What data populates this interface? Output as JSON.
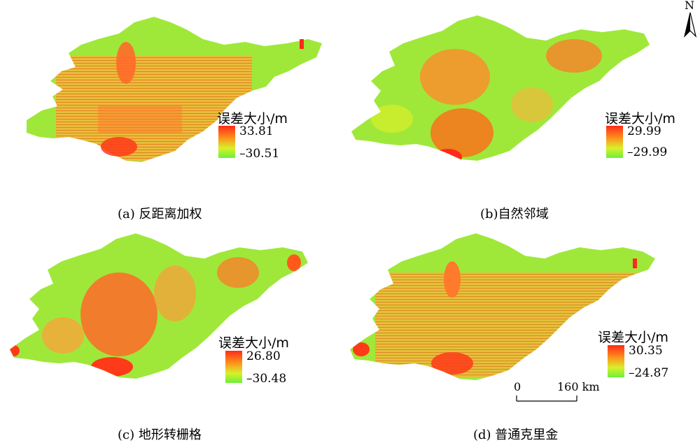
{
  "north_arrow": {
    "label": "N",
    "icon": "north-arrow-icon"
  },
  "panels": [
    {
      "caption": "(a) 反距离加权",
      "legend_title": "误差大小/m",
      "legend_max": "33.81",
      "legend_min": "–30.51"
    },
    {
      "caption": "(b)自然邻域",
      "legend_title": "误差大小/m",
      "legend_max": "29.99",
      "legend_min": "–29.99"
    },
    {
      "caption": "(c) 地形转栅格",
      "legend_title": "误差大小/m",
      "legend_max": "26.80",
      "legend_min": "–30.48"
    },
    {
      "caption": "(d) 普通克里金",
      "legend_title": "误差大小/m",
      "legend_max": "30.35",
      "legend_min": "–24.87"
    }
  ],
  "scale_bar": {
    "start": "0",
    "end": "160 km"
  },
  "colors": {
    "high": "#ff2a1a",
    "mid": "#ff9a1a",
    "low": "#6cf03a"
  }
}
